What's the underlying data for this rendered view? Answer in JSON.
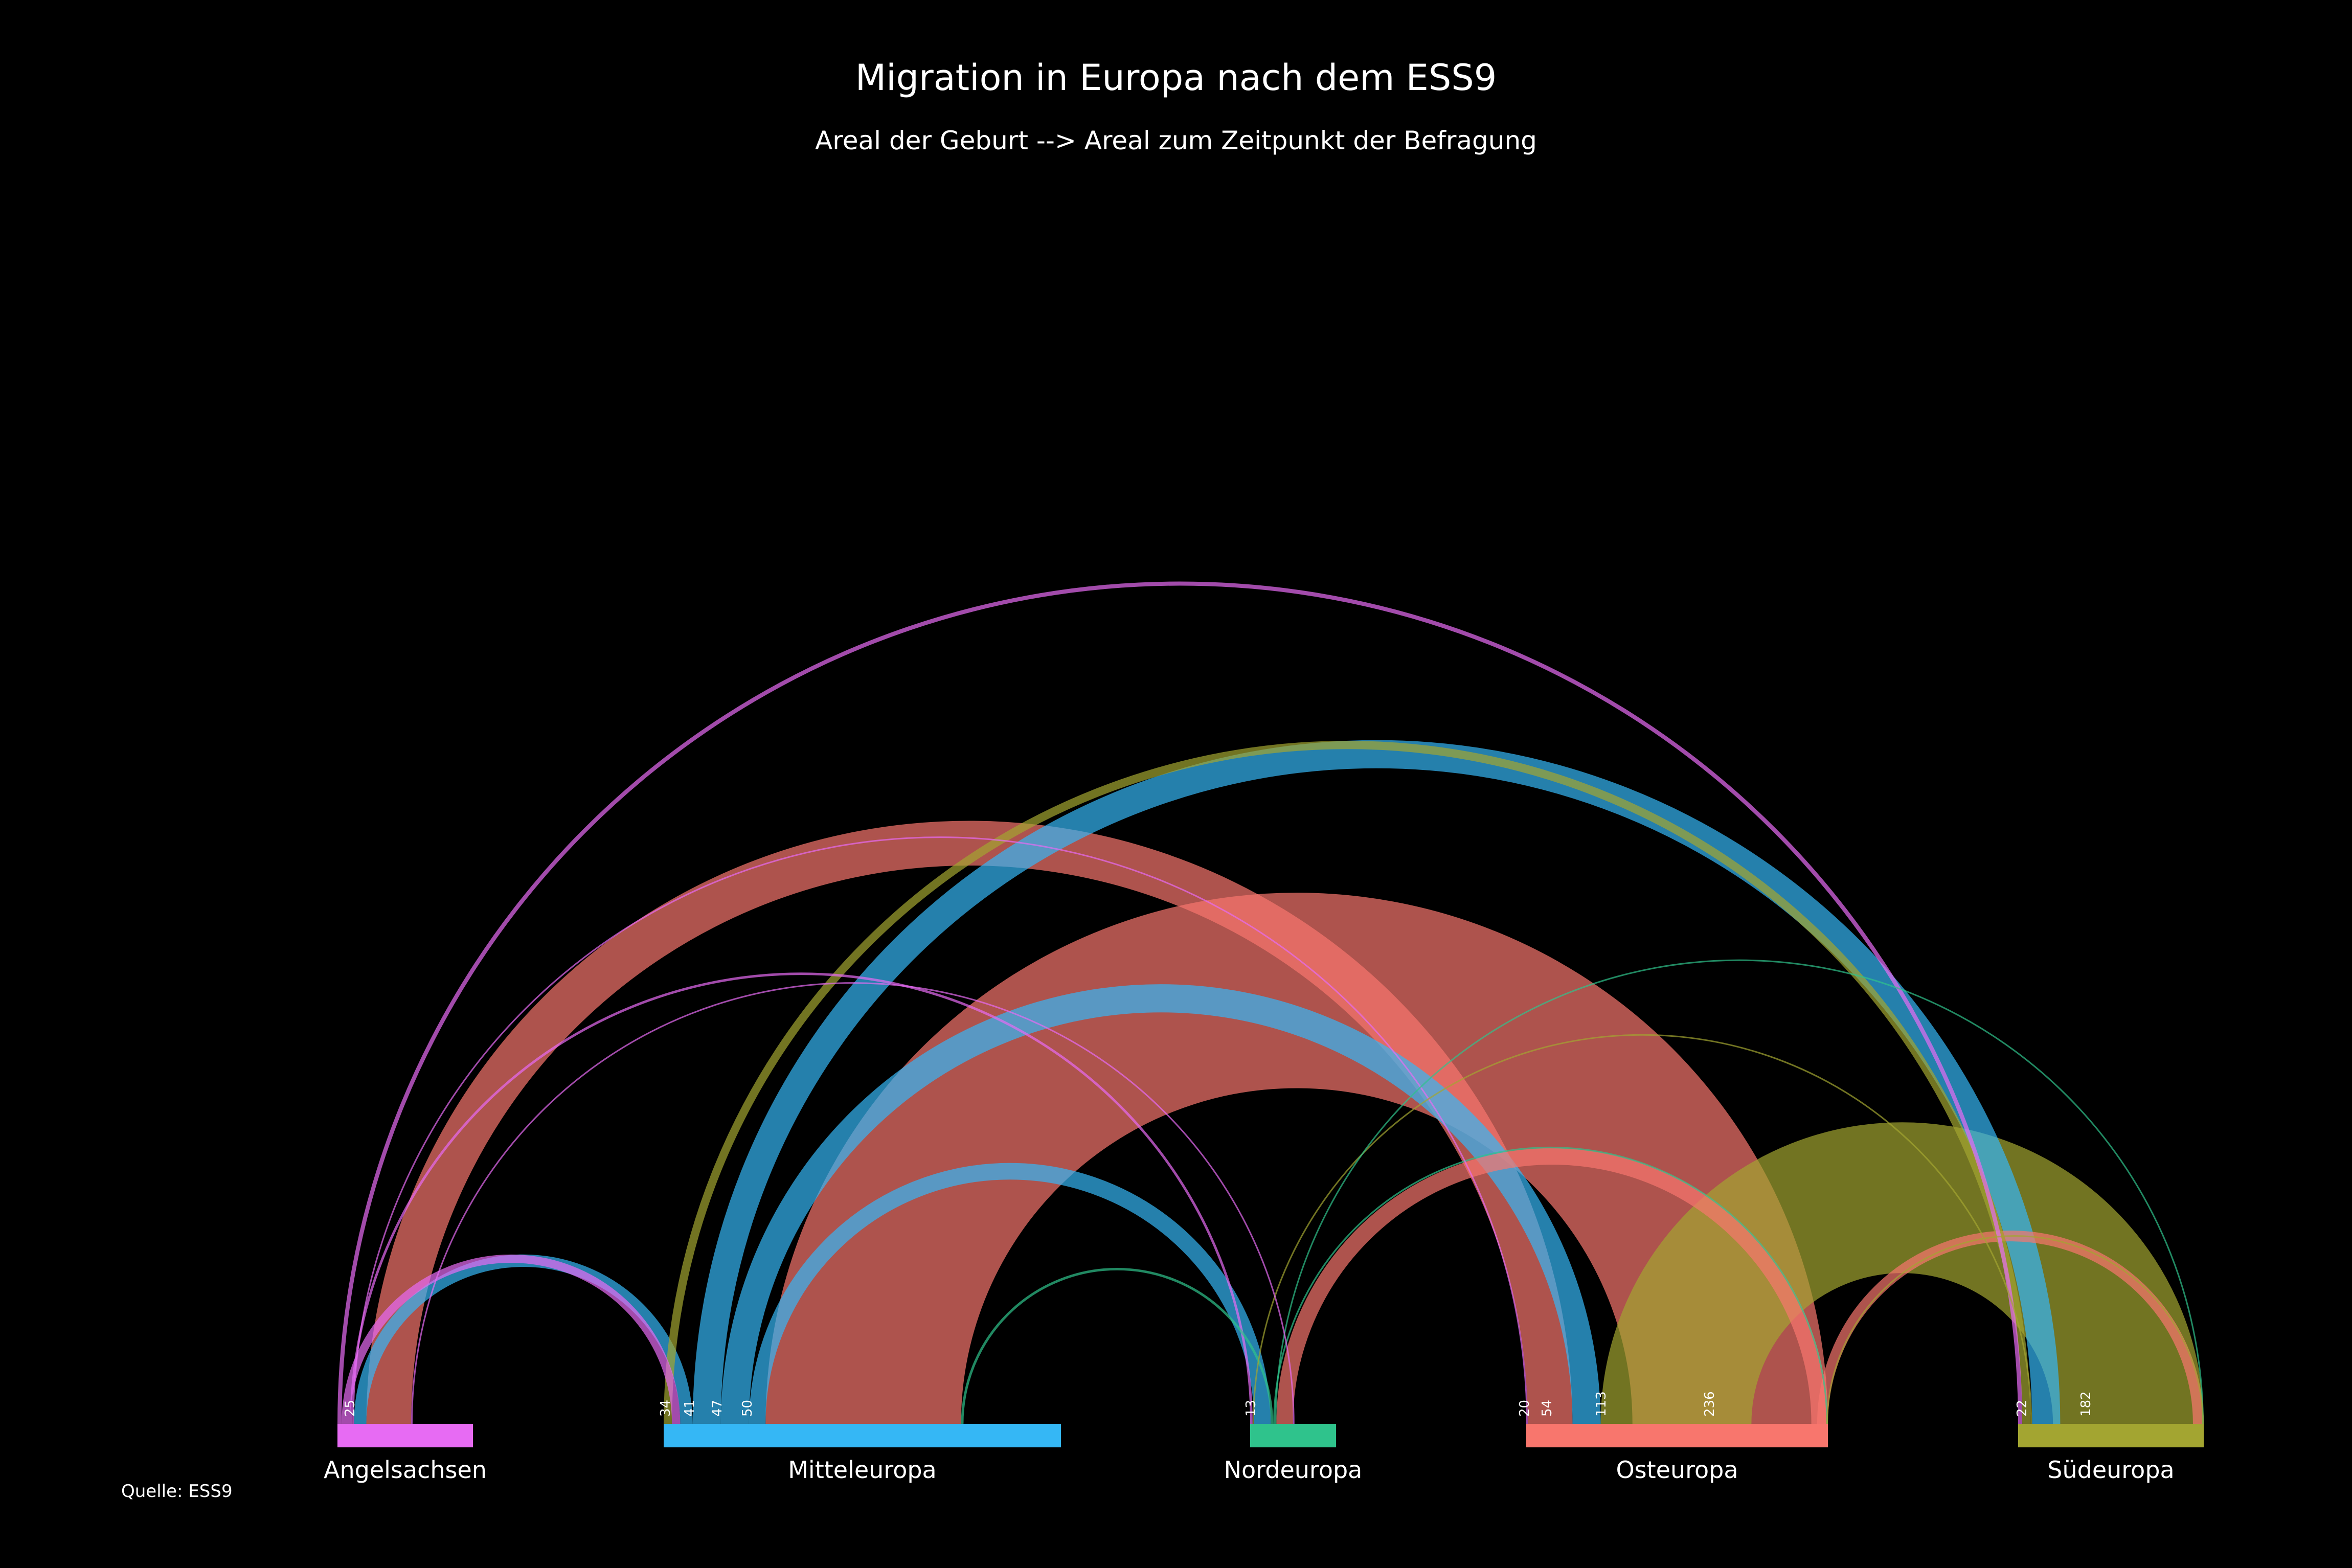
{
  "chart_data": {
    "type": "arc",
    "title": "Migration in Europa nach dem ESS9",
    "subtitle": "Areal der Geburt --> Areal zum Zeitpunkt der Befragung",
    "source": "Quelle: ESS9",
    "colors": {
      "background": "#000000",
      "Angelsachsen": "#E76BF3",
      "Mitteleuropa": "#35B7F5",
      "Nordeuropa": "#2FC38C",
      "Osteuropa": "#F8766D",
      "Südeuropa": "#A3A531"
    },
    "nodes": [
      {
        "name": "Angelsachsen"
      },
      {
        "name": "Mitteleuropa"
      },
      {
        "name": "Nordeuropa"
      },
      {
        "name": "Osteuropa"
      },
      {
        "name": "Südeuropa"
      }
    ],
    "value_labels": [
      {
        "node": "Angelsachsen",
        "text": "25"
      },
      {
        "node": "Mitteleuropa",
        "text": "34"
      },
      {
        "node": "Mitteleuropa",
        "text": "41"
      },
      {
        "node": "Mitteleuropa",
        "text": "47"
      },
      {
        "node": "Mitteleuropa",
        "text": "50"
      },
      {
        "node": "Nordeuropa",
        "text": "13"
      },
      {
        "node": "Osteuropa",
        "text": "20"
      },
      {
        "node": "Osteuropa",
        "text": "54"
      },
      {
        "node": "Osteuropa",
        "text": "113"
      },
      {
        "node": "Osteuropa",
        "text": "236"
      },
      {
        "node": "Südeuropa",
        "text": "22"
      },
      {
        "node": "Südeuropa",
        "text": "182"
      }
    ],
    "links": [
      {
        "from": "Angelsachsen",
        "to": "Südeuropa",
        "value": 5
      },
      {
        "from": "Südeuropa",
        "to": "Mitteleuropa",
        "value": 10
      },
      {
        "from": "Angelsachsen",
        "to": "Mitteleuropa",
        "value": 10
      },
      {
        "from": "Angelsachsen",
        "to": "Nordeuropa",
        "value": 3
      },
      {
        "from": "Angelsachsen",
        "to": "Osteuropa",
        "value": 1
      },
      {
        "from": "Südeuropa",
        "to": "Nordeuropa",
        "value": 1
      },
      {
        "from": "Mitteleuropa",
        "to": "Angelsachsen",
        "value": 15
      },
      {
        "from": "Osteuropa",
        "to": "Angelsachsen",
        "value": 54
      },
      {
        "from": "Mitteleuropa",
        "to": "Südeuropa",
        "value": 34
      },
      {
        "from": "Mitteleuropa",
        "to": "Osteuropa",
        "value": 34
      },
      {
        "from": "Südeuropa",
        "to": "Osteuropa",
        "value": 182
      },
      {
        "from": "Mitteleuropa",
        "to": "Nordeuropa",
        "value": 20
      },
      {
        "from": "Osteuropa",
        "to": "Mitteleuropa",
        "value": 236
      },
      {
        "from": "Nordeuropa",
        "to": "Mitteleuropa",
        "value": 3
      },
      {
        "from": "Nordeuropa",
        "to": "Osteuropa",
        "value": 2
      },
      {
        "from": "Nordeuropa",
        "to": "Südeuropa",
        "value": 1
      },
      {
        "from": "Osteuropa",
        "to": "Nordeuropa",
        "value": 20
      },
      {
        "from": "Osteuropa",
        "to": "Südeuropa",
        "value": 13
      },
      {
        "from": "Südeuropa",
        "to": "Osteuropa",
        "value": 1
      },
      {
        "from": "Angelsachsen",
        "to": "Nordeuropa",
        "value": 1
      },
      {
        "from": "Südeuropa",
        "to": "Südeuropa",
        "value": 6
      }
    ]
  }
}
